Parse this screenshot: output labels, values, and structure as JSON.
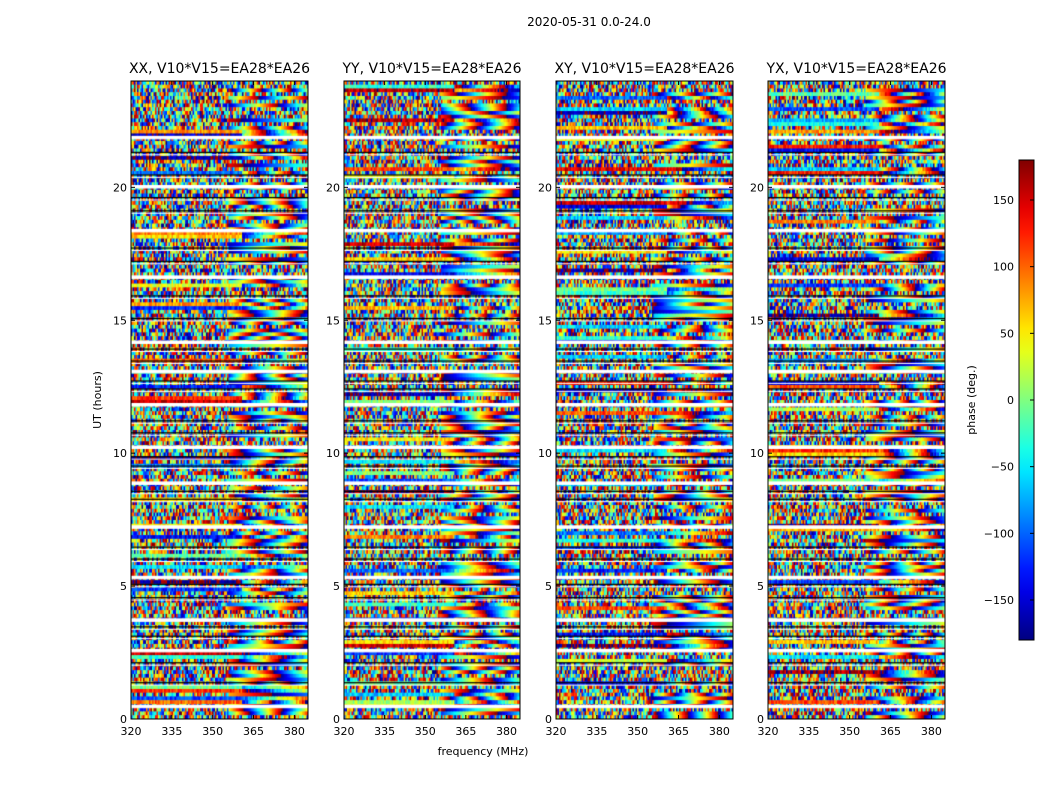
{
  "chart_data": {
    "type": "heatmap",
    "title": "2020-05-31 0.0-24.0",
    "xlabel": "frequency (MHz)",
    "ylabel": "UT (hours)",
    "xlim": [
      320,
      385
    ],
    "ylim": [
      0,
      24
    ],
    "x_ticks": [
      "320",
      "335",
      "350",
      "365",
      "380"
    ],
    "y_ticks": [
      "0",
      "5",
      "10",
      "15",
      "20"
    ],
    "panels": [
      {
        "title": "XX, V10*V15=EA28*EA26",
        "seed": 11
      },
      {
        "title": "YY, V10*V15=EA28*EA26",
        "seed": 23
      },
      {
        "title": "XY, V10*V15=EA28*EA26",
        "seed": 37
      },
      {
        "title": "YX, V10*V15=EA28*EA26",
        "seed": 53
      }
    ],
    "colorbar": {
      "label": "phase (deg.)",
      "range": [
        -180,
        180
      ],
      "ticks": [
        "150",
        "100",
        "50",
        "0",
        "−50",
        "−100",
        "−150"
      ],
      "tick_values": [
        150,
        100,
        50,
        0,
        -50,
        -100,
        -150
      ],
      "colormap": "jet"
    },
    "gap_bands_hours": [
      0.5,
      1.35,
      2.1,
      2.6,
      3.1,
      3.45,
      3.75,
      4.55,
      5.05,
      5.35,
      6.0,
      6.45,
      7.25,
      8.25,
      8.55,
      8.9,
      9.5,
      9.85,
      10.25,
      10.75,
      11.2,
      11.85,
      12.4,
      12.7,
      13.1,
      13.45,
      13.9,
      14.2,
      15.05,
      15.9,
      16.65,
      17.2,
      17.7,
      18.4,
      19.1,
      19.6,
      20.05,
      20.45,
      21.3,
      21.9
    ]
  }
}
